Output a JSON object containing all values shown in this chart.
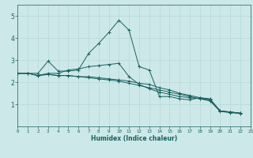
{
  "xlabel": "Humidex (Indice chaleur)",
  "background_color": "#cde8e8",
  "grid_color": "#b8d8d8",
  "line_color": "#1a6060",
  "xlim": [
    0,
    23
  ],
  "ylim": [
    0,
    5.5
  ],
  "xticks": [
    0,
    1,
    2,
    3,
    4,
    5,
    6,
    7,
    8,
    9,
    10,
    11,
    12,
    13,
    14,
    15,
    16,
    17,
    18,
    19,
    20,
    21,
    22,
    23
  ],
  "yticks": [
    1,
    2,
    3,
    4,
    5
  ],
  "series": [
    {
      "x": [
        0,
        1,
        2,
        3,
        4,
        5,
        6,
        7,
        8,
        9,
        10,
        11,
        12,
        13,
        14,
        15,
        16,
        17,
        18,
        19,
        20,
        21,
        22
      ],
      "y": [
        2.4,
        2.4,
        2.4,
        2.95,
        2.5,
        2.5,
        2.55,
        3.3,
        3.75,
        4.25,
        4.8,
        4.35,
        2.7,
        2.55,
        1.35,
        1.35,
        1.25,
        1.2,
        1.3,
        1.25,
        0.7,
        0.65,
        0.6
      ]
    },
    {
      "x": [
        0,
        1,
        2,
        3,
        4,
        5,
        6,
        7,
        8,
        9,
        10,
        11,
        12,
        13,
        14,
        15,
        16,
        17,
        18,
        19,
        20,
        21,
        22
      ],
      "y": [
        2.4,
        2.4,
        2.3,
        2.4,
        2.4,
        2.55,
        2.6,
        2.7,
        2.75,
        2.8,
        2.85,
        2.25,
        1.9,
        1.7,
        1.55,
        1.45,
        1.35,
        1.3,
        1.25,
        1.2,
        0.7,
        0.65,
        0.6
      ]
    },
    {
      "x": [
        0,
        1,
        2,
        3,
        4,
        5,
        6,
        7,
        8,
        9,
        10,
        11,
        12,
        13,
        14,
        15,
        16,
        17,
        18,
        19,
        20,
        21,
        22
      ],
      "y": [
        2.4,
        2.4,
        2.3,
        2.35,
        2.3,
        2.3,
        2.25,
        2.25,
        2.2,
        2.15,
        2.1,
        2.05,
        1.95,
        1.9,
        1.75,
        1.65,
        1.5,
        1.4,
        1.3,
        1.2,
        0.7,
        0.65,
        0.6
      ]
    },
    {
      "x": [
        0,
        1,
        2,
        3,
        4,
        5,
        6,
        7,
        8,
        9,
        10,
        11,
        12,
        13,
        14,
        15,
        16,
        17,
        18,
        19,
        20,
        21,
        22
      ],
      "y": [
        2.4,
        2.4,
        2.3,
        2.35,
        2.3,
        2.3,
        2.25,
        2.2,
        2.15,
        2.1,
        2.05,
        1.95,
        1.85,
        1.75,
        1.65,
        1.55,
        1.45,
        1.35,
        1.25,
        1.15,
        0.68,
        0.62,
        0.58
      ]
    }
  ]
}
